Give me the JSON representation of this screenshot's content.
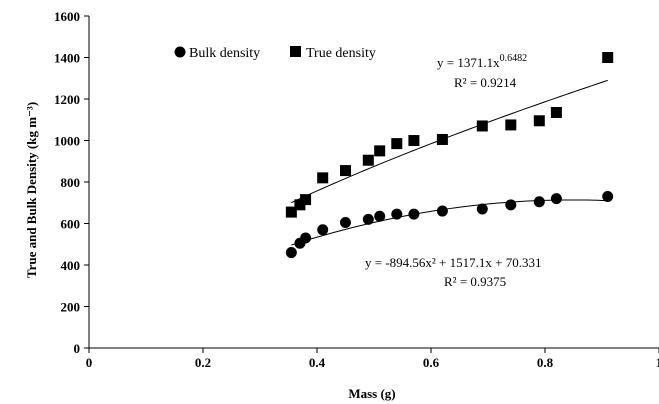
{
  "chart_data": {
    "type": "scatter",
    "title": "",
    "xlabel": "Mass (g)",
    "ylabel": "True and Bulk Density (kg m⁻³)",
    "xlim": [
      0,
      1
    ],
    "ylim": [
      0,
      1600
    ],
    "x_ticks": [
      "0",
      "0.2",
      "0.4",
      "0.6",
      "0.8",
      "1"
    ],
    "y_ticks": [
      "0",
      "200",
      "400",
      "600",
      "800",
      "1000",
      "1200",
      "1400",
      "1600"
    ],
    "grid": false,
    "legend_position": "top-left",
    "series": [
      {
        "name": "Bulk density",
        "marker": "circle",
        "color": "#000000",
        "x": [
          0.355,
          0.37,
          0.38,
          0.41,
          0.45,
          0.49,
          0.51,
          0.54,
          0.57,
          0.62,
          0.69,
          0.74,
          0.79,
          0.82,
          0.91
        ],
        "y": [
          460,
          505,
          530,
          570,
          605,
          620,
          635,
          645,
          645,
          660,
          670,
          690,
          705,
          720,
          730
        ],
        "trendline": {
          "type": "polynomial",
          "coefficients": [
            -894.56,
            1517.1,
            70.331
          ],
          "equation": "y = -894.56x² + 1517.1x + 70.331",
          "r2": "R² = 0.9375"
        }
      },
      {
        "name": "True density",
        "marker": "square",
        "color": "#000000",
        "x": [
          0.355,
          0.37,
          0.38,
          0.41,
          0.45,
          0.49,
          0.51,
          0.54,
          0.57,
          0.62,
          0.69,
          0.74,
          0.79,
          0.82,
          0.91
        ],
        "y": [
          655,
          690,
          715,
          820,
          855,
          905,
          950,
          985,
          1000,
          1005,
          1070,
          1075,
          1095,
          1135,
          1400
        ],
        "trendline": {
          "type": "power",
          "coefficient": 1371.1,
          "exponent": 0.6482,
          "equation_base": "y = 1371.1x",
          "equation_exp": "0.6482",
          "r2": "R² = 0.9214"
        }
      }
    ]
  }
}
